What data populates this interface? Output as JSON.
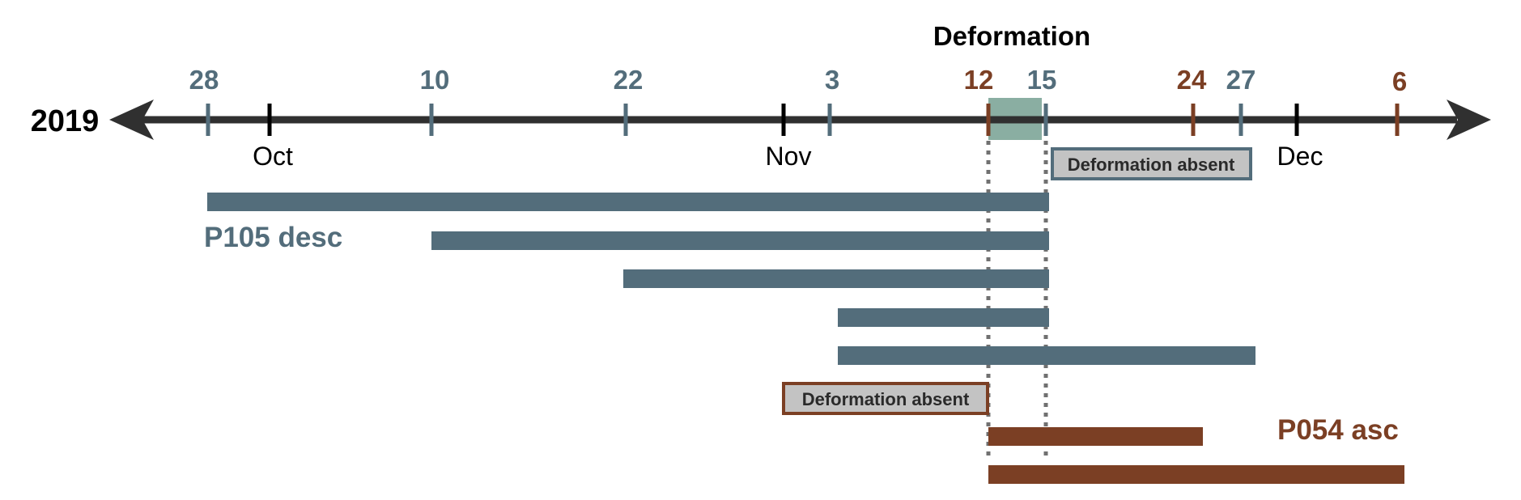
{
  "title": "Deformation",
  "year": "2019",
  "month_labels": [
    "Oct",
    "Nov",
    "Dec"
  ],
  "desc_ticks": [
    "28",
    "10",
    "22",
    "3",
    "15",
    "27"
  ],
  "asc_ticks": [
    "12",
    "24",
    "6"
  ],
  "desc_label": "P105 desc",
  "asc_label": "P054 asc",
  "absent_desc": "Deformation absent",
  "absent_asc": "Deformation absent",
  "colors": {
    "desc": "#536d7b",
    "asc": "#7b3f24",
    "axis": "#303030",
    "window": "#8aaea2",
    "box_fill": "#c3c3c3",
    "dotted": "#707070"
  },
  "chart_data": {
    "type": "timeline",
    "title": "Deformation",
    "axis_year": "2019",
    "deformation_window": [
      "2019-11-12",
      "2019-11-15"
    ],
    "series": [
      {
        "name": "P105 desc",
        "acquisitions": [
          "2019-09-28",
          "2019-10-10",
          "2019-10-22",
          "2019-11-03",
          "2019-11-15",
          "2019-11-27"
        ],
        "pairs": [
          [
            "2019-09-28",
            "2019-11-15"
          ],
          [
            "2019-10-10",
            "2019-11-15"
          ],
          [
            "2019-10-22",
            "2019-11-15"
          ],
          [
            "2019-11-03",
            "2019-11-15"
          ],
          [
            "2019-11-03",
            "2019-11-27"
          ]
        ],
        "annotation": "Deformation absent"
      },
      {
        "name": "P054 asc",
        "acquisitions": [
          "2019-11-12",
          "2019-11-24",
          "2019-12-06"
        ],
        "pairs": [
          [
            "2019-11-12",
            "2019-11-24"
          ],
          [
            "2019-11-12",
            "2019-12-06"
          ]
        ],
        "annotation": "Deformation absent"
      }
    ]
  }
}
